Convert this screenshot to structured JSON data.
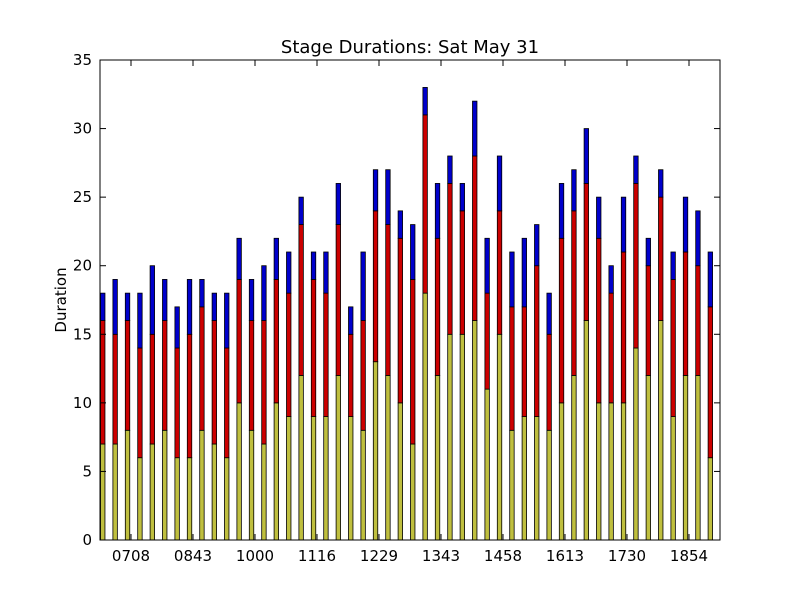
{
  "chart_data": {
    "type": "bar",
    "stacked": true,
    "title": "Stage Durations: Sat May 31",
    "xlabel": "",
    "ylabel": "Duration",
    "ylim": [
      0,
      35
    ],
    "yticks": [
      0,
      5,
      10,
      15,
      20,
      25,
      30,
      35
    ],
    "xtick_labels": [
      "0708",
      "0843",
      "1000",
      "1116",
      "1229",
      "1343",
      "1458",
      "1613",
      "1730",
      "1854"
    ],
    "xtick_bar_positions": [
      2.5,
      7.5,
      12.5,
      17.5,
      22.5,
      27.5,
      32.5,
      37.5,
      42.5,
      47.5
    ],
    "grid": false,
    "series": [
      {
        "color": "#bfbf3f",
        "values": [
          7,
          7,
          8,
          6,
          7,
          8,
          6,
          6,
          8,
          7,
          6,
          10,
          8,
          7,
          10,
          9,
          12,
          9,
          9,
          12,
          9,
          8,
          13,
          12,
          10,
          7,
          18,
          12,
          15,
          15,
          16,
          11,
          15,
          8,
          9,
          9,
          8,
          10,
          12,
          16,
          10,
          10,
          10,
          14,
          12,
          16,
          9,
          12,
          12,
          6
        ]
      },
      {
        "color": "#cc0000",
        "values": [
          9,
          8,
          8,
          8,
          8,
          8,
          8,
          9,
          9,
          9,
          8,
          9,
          8,
          9,
          9,
          9,
          11,
          10,
          9,
          11,
          6,
          8,
          11,
          11,
          12,
          12,
          13,
          10,
          11,
          9,
          12,
          7,
          9,
          9,
          8,
          11,
          7,
          12,
          12,
          10,
          12,
          8,
          11,
          12,
          8,
          9,
          10,
          9,
          8,
          11
        ]
      },
      {
        "color": "#0000cc",
        "values": [
          2,
          4,
          2,
          4,
          5,
          3,
          3,
          4,
          2,
          2,
          4,
          3,
          3,
          4,
          3,
          3,
          2,
          2,
          3,
          3,
          2,
          5,
          3,
          4,
          2,
          4,
          2,
          4,
          2,
          2,
          4,
          4,
          4,
          4,
          5,
          3,
          3,
          4,
          3,
          4,
          3,
          2,
          4,
          2,
          2,
          2,
          2,
          4,
          4,
          4
        ]
      }
    ]
  }
}
